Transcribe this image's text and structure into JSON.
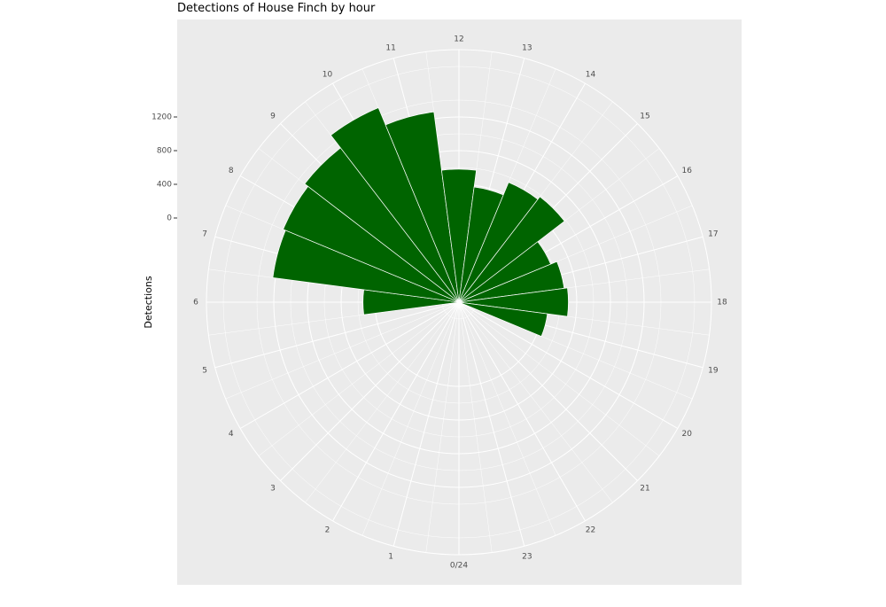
{
  "chart_data": {
    "type": "bar",
    "coordinate_system": "polar",
    "title": "Detections of House Finch by hour",
    "ylabel": "Detections",
    "xlabel": "",
    "hour_labels": [
      "0/24",
      "1",
      "2",
      "3",
      "4",
      "5",
      "6",
      "7",
      "8",
      "9",
      "10",
      "11",
      "12",
      "13",
      "14",
      "15",
      "16",
      "17",
      "18",
      "19",
      "20",
      "21",
      "22",
      "23"
    ],
    "y_ticks": [
      0,
      400,
      800,
      1200
    ],
    "y_tick_labels": [
      "0",
      "400",
      "800",
      "1200"
    ],
    "ylim": [
      -1000,
      2000
    ],
    "bar_color": "#006400",
    "panel_color": "#ebebeb",
    "grid_color": "#ffffff",
    "grid": true,
    "legend": "none",
    "series": [
      {
        "x": [
          6,
          7,
          8,
          9,
          10,
          11,
          12,
          13,
          14,
          15,
          16,
          17,
          18,
          19
        ],
        "values": [
          140,
          1230,
          1260,
          1310,
          1500,
          1280,
          580,
          380,
          540,
          580,
          180,
          260,
          300,
          60
        ]
      }
    ]
  }
}
